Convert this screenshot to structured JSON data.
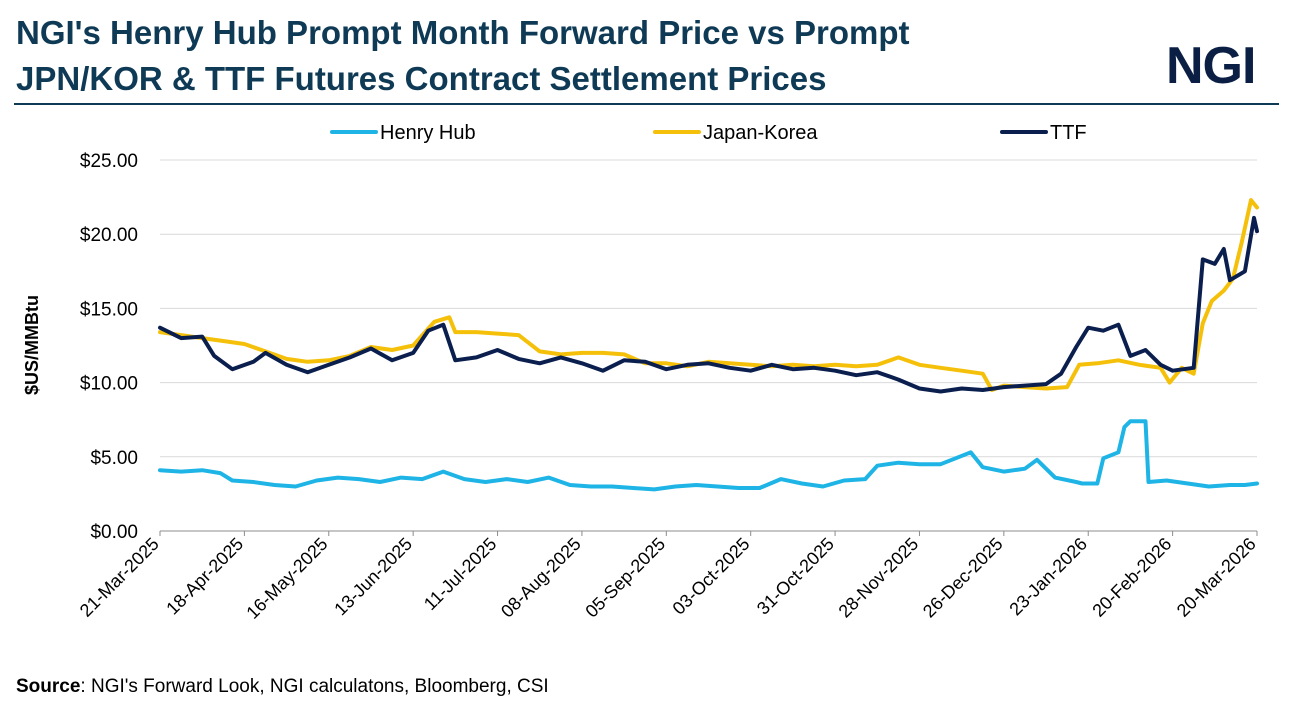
{
  "header": {
    "title_line1": "NGI's Henry Hub Prompt Month Forward Price vs Prompt",
    "title_line2": "JPN/KOR & TTF Futures Contract Settlement Prices",
    "logo_text": "NGI"
  },
  "footer": {
    "source_label": "Source",
    "source_text": ": NGI's Forward Look, NGI calculatons, Bloomberg, CSI"
  },
  "chart_data": {
    "type": "line",
    "title": "NGI's Henry Hub Prompt Month Forward Price vs Prompt JPN/KOR & TTF Futures Contract Settlement Prices",
    "xlabel": "",
    "ylabel": "$US/MMBtu",
    "ylim": [
      0,
      25
    ],
    "yticks": [
      0,
      5,
      10,
      15,
      20,
      25
    ],
    "ytick_labels": [
      "$0.00",
      "$5.00",
      "$10.00",
      "$15.00",
      "$20.00",
      "$25.00"
    ],
    "xlim": [
      "2025-03-21",
      "2026-03-20"
    ],
    "xtick_labels": [
      "21-Mar-2025",
      "18-Apr-2025",
      "16-May-2025",
      "13-Jun-2025",
      "11-Jul-2025",
      "08-Aug-2025",
      "05-Sep-2025",
      "03-Oct-2025",
      "31-Oct-2025",
      "28-Nov-2025",
      "26-Dec-2025",
      "23-Jan-2026",
      "20-Feb-2026",
      "20-Mar-2026"
    ],
    "grid": "horizontal",
    "legend_position": "top",
    "series": [
      {
        "name": "Henry Hub",
        "color": "#1fb4e6",
        "points": [
          [
            "2025-03-21",
            4.1
          ],
          [
            "2025-03-28",
            4.0
          ],
          [
            "2025-04-04",
            4.1
          ],
          [
            "2025-04-10",
            3.9
          ],
          [
            "2025-04-14",
            3.4
          ],
          [
            "2025-04-21",
            3.3
          ],
          [
            "2025-04-28",
            3.1
          ],
          [
            "2025-05-05",
            3.0
          ],
          [
            "2025-05-12",
            3.4
          ],
          [
            "2025-05-19",
            3.6
          ],
          [
            "2025-05-26",
            3.5
          ],
          [
            "2025-06-02",
            3.3
          ],
          [
            "2025-06-09",
            3.6
          ],
          [
            "2025-06-16",
            3.5
          ],
          [
            "2025-06-23",
            4.0
          ],
          [
            "2025-06-30",
            3.5
          ],
          [
            "2025-07-07",
            3.3
          ],
          [
            "2025-07-14",
            3.5
          ],
          [
            "2025-07-21",
            3.3
          ],
          [
            "2025-07-28",
            3.6
          ],
          [
            "2025-08-04",
            3.1
          ],
          [
            "2025-08-11",
            3.0
          ],
          [
            "2025-08-18",
            3.0
          ],
          [
            "2025-08-25",
            2.9
          ],
          [
            "2025-09-01",
            2.8
          ],
          [
            "2025-09-08",
            3.0
          ],
          [
            "2025-09-15",
            3.1
          ],
          [
            "2025-09-22",
            3.0
          ],
          [
            "2025-09-29",
            2.9
          ],
          [
            "2025-10-06",
            2.9
          ],
          [
            "2025-10-13",
            3.5
          ],
          [
            "2025-10-20",
            3.2
          ],
          [
            "2025-10-27",
            3.0
          ],
          [
            "2025-11-03",
            3.4
          ],
          [
            "2025-11-10",
            3.5
          ],
          [
            "2025-11-14",
            4.4
          ],
          [
            "2025-11-21",
            4.6
          ],
          [
            "2025-11-28",
            4.5
          ],
          [
            "2025-12-05",
            4.5
          ],
          [
            "2025-12-10",
            4.9
          ],
          [
            "2025-12-15",
            5.3
          ],
          [
            "2025-12-19",
            4.3
          ],
          [
            "2025-12-26",
            4.0
          ],
          [
            "2026-01-02",
            4.2
          ],
          [
            "2026-01-06",
            4.8
          ],
          [
            "2026-01-12",
            3.6
          ],
          [
            "2026-01-19",
            3.3
          ],
          [
            "2026-01-21",
            3.2
          ],
          [
            "2026-01-26",
            3.2
          ],
          [
            "2026-01-28",
            4.9
          ],
          [
            "2026-02-02",
            5.3
          ],
          [
            "2026-02-04",
            7.0
          ],
          [
            "2026-02-06",
            7.4
          ],
          [
            "2026-02-11",
            7.4
          ],
          [
            "2026-02-12",
            3.3
          ],
          [
            "2026-02-18",
            3.4
          ],
          [
            "2026-02-25",
            3.2
          ],
          [
            "2026-03-04",
            3.0
          ],
          [
            "2026-03-11",
            3.1
          ],
          [
            "2026-03-16",
            3.1
          ],
          [
            "2026-03-20",
            3.2
          ]
        ]
      },
      {
        "name": "Japan-Korea",
        "color": "#f5c00a",
        "points": [
          [
            "2025-03-21",
            13.4
          ],
          [
            "2025-03-28",
            13.2
          ],
          [
            "2025-04-04",
            13.0
          ],
          [
            "2025-04-11",
            12.8
          ],
          [
            "2025-04-18",
            12.6
          ],
          [
            "2025-04-25",
            12.1
          ],
          [
            "2025-05-02",
            11.6
          ],
          [
            "2025-05-09",
            11.4
          ],
          [
            "2025-05-16",
            11.5
          ],
          [
            "2025-05-23",
            11.8
          ],
          [
            "2025-05-30",
            12.4
          ],
          [
            "2025-06-06",
            12.2
          ],
          [
            "2025-06-13",
            12.5
          ],
          [
            "2025-06-20",
            14.1
          ],
          [
            "2025-06-25",
            14.4
          ],
          [
            "2025-06-27",
            13.4
          ],
          [
            "2025-07-04",
            13.4
          ],
          [
            "2025-07-11",
            13.3
          ],
          [
            "2025-07-18",
            13.2
          ],
          [
            "2025-07-25",
            12.1
          ],
          [
            "2025-08-01",
            11.9
          ],
          [
            "2025-08-08",
            12.0
          ],
          [
            "2025-08-15",
            12.0
          ],
          [
            "2025-08-22",
            11.9
          ],
          [
            "2025-08-29",
            11.3
          ],
          [
            "2025-09-05",
            11.3
          ],
          [
            "2025-09-12",
            11.1
          ],
          [
            "2025-09-19",
            11.4
          ],
          [
            "2025-09-26",
            11.3
          ],
          [
            "2025-10-03",
            11.2
          ],
          [
            "2025-10-10",
            11.1
          ],
          [
            "2025-10-17",
            11.2
          ],
          [
            "2025-10-24",
            11.1
          ],
          [
            "2025-10-31",
            11.2
          ],
          [
            "2025-11-07",
            11.1
          ],
          [
            "2025-11-14",
            11.2
          ],
          [
            "2025-11-21",
            11.7
          ],
          [
            "2025-11-28",
            11.2
          ],
          [
            "2025-12-05",
            11.0
          ],
          [
            "2025-12-12",
            10.8
          ],
          [
            "2025-12-19",
            10.6
          ],
          [
            "2025-12-22",
            9.5
          ],
          [
            "2025-12-26",
            9.8
          ],
          [
            "2026-01-02",
            9.7
          ],
          [
            "2026-01-09",
            9.6
          ],
          [
            "2026-01-16",
            9.7
          ],
          [
            "2026-01-20",
            11.2
          ],
          [
            "2026-01-26",
            11.3
          ],
          [
            "2026-02-02",
            11.5
          ],
          [
            "2026-02-09",
            11.2
          ],
          [
            "2026-02-16",
            11.0
          ],
          [
            "2026-02-19",
            10.0
          ],
          [
            "2026-02-23",
            11.0
          ],
          [
            "2026-02-27",
            10.6
          ],
          [
            "2026-03-02",
            14.0
          ],
          [
            "2026-03-05",
            15.5
          ],
          [
            "2026-03-09",
            16.2
          ],
          [
            "2026-03-12",
            17.0
          ],
          [
            "2026-03-15",
            19.5
          ],
          [
            "2026-03-18",
            22.3
          ],
          [
            "2026-03-20",
            21.8
          ]
        ]
      },
      {
        "name": "TTF",
        "color": "#0b1f4f",
        "points": [
          [
            "2025-03-21",
            13.7
          ],
          [
            "2025-03-28",
            13.0
          ],
          [
            "2025-04-04",
            13.1
          ],
          [
            "2025-04-08",
            11.8
          ],
          [
            "2025-04-14",
            10.9
          ],
          [
            "2025-04-21",
            11.4
          ],
          [
            "2025-04-25",
            12.0
          ],
          [
            "2025-05-02",
            11.2
          ],
          [
            "2025-05-09",
            10.7
          ],
          [
            "2025-05-16",
            11.2
          ],
          [
            "2025-05-23",
            11.7
          ],
          [
            "2025-05-30",
            12.3
          ],
          [
            "2025-06-06",
            11.5
          ],
          [
            "2025-06-13",
            12.0
          ],
          [
            "2025-06-18",
            13.5
          ],
          [
            "2025-06-23",
            13.9
          ],
          [
            "2025-06-27",
            11.5
          ],
          [
            "2025-07-04",
            11.7
          ],
          [
            "2025-07-11",
            12.2
          ],
          [
            "2025-07-18",
            11.6
          ],
          [
            "2025-07-25",
            11.3
          ],
          [
            "2025-08-01",
            11.7
          ],
          [
            "2025-08-08",
            11.3
          ],
          [
            "2025-08-15",
            10.8
          ],
          [
            "2025-08-22",
            11.5
          ],
          [
            "2025-08-29",
            11.4
          ],
          [
            "2025-09-05",
            10.9
          ],
          [
            "2025-09-12",
            11.2
          ],
          [
            "2025-09-19",
            11.3
          ],
          [
            "2025-09-26",
            11.0
          ],
          [
            "2025-10-03",
            10.8
          ],
          [
            "2025-10-10",
            11.2
          ],
          [
            "2025-10-17",
            10.9
          ],
          [
            "2025-10-24",
            11.0
          ],
          [
            "2025-10-31",
            10.8
          ],
          [
            "2025-11-07",
            10.5
          ],
          [
            "2025-11-14",
            10.7
          ],
          [
            "2025-11-21",
            10.2
          ],
          [
            "2025-11-28",
            9.6
          ],
          [
            "2025-12-05",
            9.4
          ],
          [
            "2025-12-12",
            9.6
          ],
          [
            "2025-12-19",
            9.5
          ],
          [
            "2025-12-26",
            9.7
          ],
          [
            "2026-01-02",
            9.8
          ],
          [
            "2026-01-09",
            9.9
          ],
          [
            "2026-01-14",
            10.6
          ],
          [
            "2026-01-19",
            12.4
          ],
          [
            "2026-01-23",
            13.7
          ],
          [
            "2026-01-28",
            13.5
          ],
          [
            "2026-02-02",
            13.9
          ],
          [
            "2026-02-06",
            11.8
          ],
          [
            "2026-02-11",
            12.2
          ],
          [
            "2026-02-16",
            11.2
          ],
          [
            "2026-02-20",
            10.8
          ],
          [
            "2026-02-27",
            11.0
          ],
          [
            "2026-03-02",
            18.3
          ],
          [
            "2026-03-06",
            18.0
          ],
          [
            "2026-03-09",
            19.0
          ],
          [
            "2026-03-11",
            16.9
          ],
          [
            "2026-03-16",
            17.5
          ],
          [
            "2026-03-19",
            21.1
          ],
          [
            "2026-03-20",
            20.2
          ]
        ]
      }
    ]
  }
}
